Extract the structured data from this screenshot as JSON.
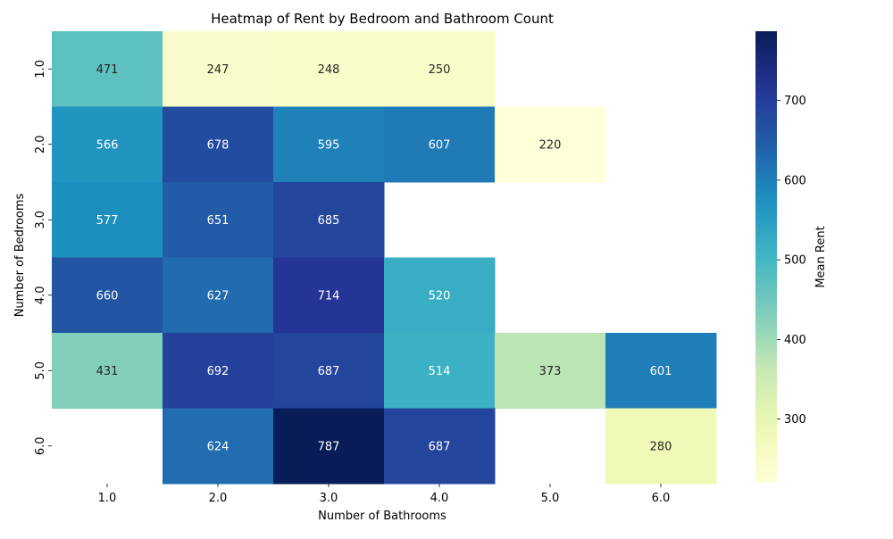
{
  "chart_data": {
    "type": "heatmap",
    "title": "Heatmap of Rent by Bedroom and Bathroom Count",
    "xlabel": "Number of Bathrooms",
    "ylabel": "Number of Bedrooms",
    "x_categories": [
      "1.0",
      "2.0",
      "3.0",
      "4.0",
      "5.0",
      "6.0"
    ],
    "y_categories": [
      "1.0",
      "2.0",
      "3.0",
      "4.0",
      "5.0",
      "6.0"
    ],
    "values": [
      [
        471,
        247,
        248,
        250,
        null,
        null
      ],
      [
        566,
        678,
        595,
        607,
        220,
        null
      ],
      [
        577,
        651,
        685,
        null,
        null,
        null
      ],
      [
        660,
        627,
        714,
        520,
        null,
        null
      ],
      [
        431,
        692,
        687,
        514,
        373,
        601
      ],
      [
        null,
        624,
        787,
        687,
        null,
        280
      ]
    ],
    "colorbar": {
      "label": "Mean Rent",
      "min": 220,
      "max": 787,
      "ticks": [
        300,
        400,
        500,
        600,
        700
      ],
      "colormap": "YlGnBu"
    },
    "grid": false
  }
}
